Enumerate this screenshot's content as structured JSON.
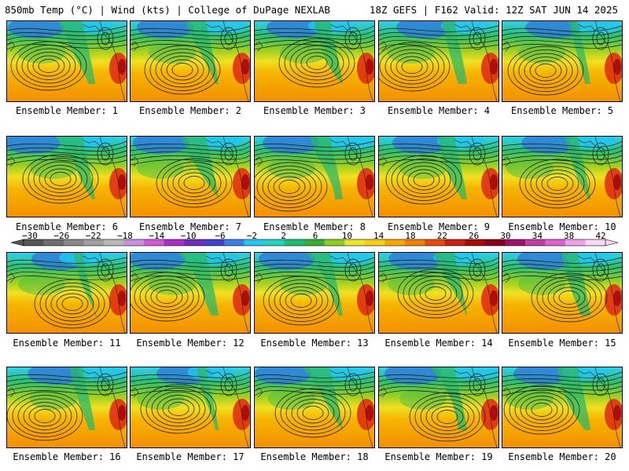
{
  "header": {
    "left_title": "850mb Temp (°C) | Wind (kts) | College of DuPage NEXLAB",
    "right_title": "18Z GEFS | F162 Valid: 12Z SAT JUN 14 2025"
  },
  "panels": [
    {
      "label": "Ensemble Member: 1"
    },
    {
      "label": "Ensemble Member: 2"
    },
    {
      "label": "Ensemble Member: 3"
    },
    {
      "label": "Ensemble Member: 4"
    },
    {
      "label": "Ensemble Member: 5"
    },
    {
      "label": "Ensemble Member: 6"
    },
    {
      "label": "Ensemble Member: 7"
    },
    {
      "label": "Ensemble Member: 8"
    },
    {
      "label": "Ensemble Member: 9"
    },
    {
      "label": "Ensemble Member: 10"
    },
    {
      "label": "Ensemble Member: 11"
    },
    {
      "label": "Ensemble Member: 12"
    },
    {
      "label": "Ensemble Member: 13"
    },
    {
      "label": "Ensemble Member: 14"
    },
    {
      "label": "Ensemble Member: 15"
    },
    {
      "label": "Ensemble Member: 16"
    },
    {
      "label": "Ensemble Member: 17"
    },
    {
      "label": "Ensemble Member: 18"
    },
    {
      "label": "Ensemble Member: 19"
    },
    {
      "label": "Ensemble Member: 20"
    }
  ],
  "colorbar": {
    "ticks": [
      "−30",
      "−26",
      "−22",
      "−18",
      "−14",
      "−10",
      "−6",
      "−2",
      "2",
      "6",
      "10",
      "14",
      "18",
      "22",
      "26",
      "30",
      "34",
      "38",
      "42"
    ],
    "colors": [
      "#555555",
      "#6e6e6e",
      "#888888",
      "#a0a0a0",
      "#b8b8b8",
      "#c98fe0",
      "#d257d9",
      "#b02ac8",
      "#6d2bbf",
      "#3f3fd0",
      "#3a7ee8",
      "#20c8f0",
      "#1fd4c0",
      "#18c070",
      "#34b030",
      "#8ccc20",
      "#e8e828",
      "#f6d010",
      "#f6a800",
      "#f28000",
      "#e84a0a",
      "#d01c10",
      "#a80808",
      "#880018",
      "#a0106a",
      "#c83aa8",
      "#e060d0",
      "#f0a0e8",
      "#f8d8f4"
    ]
  }
}
